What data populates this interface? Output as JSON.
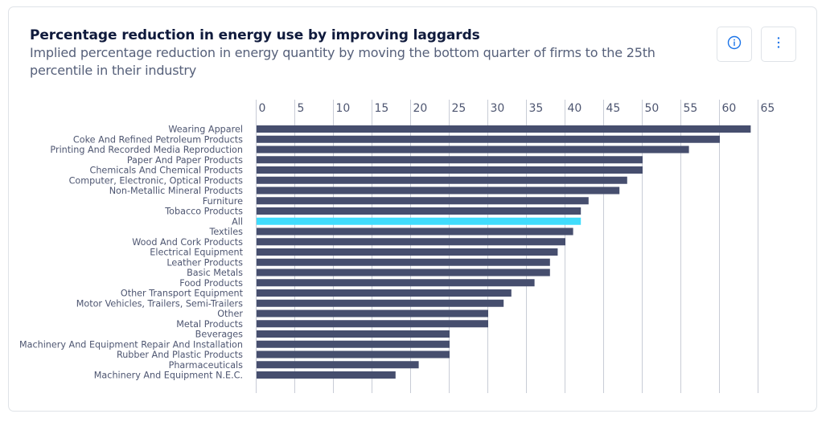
{
  "header": {
    "title": "Percentage reduction in energy use by improving laggards",
    "subtitle": "Implied percentage reduction in energy quantity by moving the bottom quarter of firms to the 25th percentile in their industry",
    "info_button_icon": "info-circle-icon",
    "more_button_icon": "vertical-ellipsis-icon"
  },
  "colors": {
    "bar": "#464e6e",
    "highlight_bar": "#40dcfc",
    "gridline": "#c8ccd6",
    "accent": "#1a73e8"
  },
  "chart_data": {
    "type": "bar",
    "orientation": "horizontal",
    "title": "Percentage reduction in energy use by improving laggards",
    "subtitle": "Implied percentage reduction in energy quantity by moving the bottom quarter of firms to the 25th percentile in their industry",
    "xlabel": "",
    "ylabel": "",
    "xlim": [
      0,
      65
    ],
    "xticks": [
      0,
      5,
      10,
      15,
      20,
      25,
      30,
      35,
      40,
      45,
      50,
      55,
      60,
      65
    ],
    "xaxis_position": "top",
    "grid": true,
    "highlight_category": "All",
    "categories": [
      "Wearing Apparel",
      "Coke And Refined Petroleum Products",
      "Printing And Recorded Media Reproduction",
      "Paper And Paper Products",
      "Chemicals And Chemical Products",
      "Computer, Electronic, Optical Products",
      "Non-Metallic Mineral Products",
      "Furniture",
      "Tobacco Products",
      "All",
      "Textiles",
      "Wood And Cork Products",
      "Electrical Equipment",
      "Leather Products",
      "Basic Metals",
      "Food Products",
      "Other Transport Equipment",
      "Motor Vehicles, Trailers, Semi-Trailers",
      "Other",
      "Metal Products",
      "Beverages",
      "Machinery And Equipment Repair And Installation",
      "Rubber And Plastic Products",
      "Pharmaceuticals",
      "Machinery And Equipment N.E.C."
    ],
    "values": [
      64,
      60,
      56,
      50,
      50,
      48,
      47,
      43,
      42,
      42,
      41,
      40,
      39,
      38,
      38,
      36,
      33,
      32,
      30,
      30,
      25,
      25,
      25,
      21,
      18
    ]
  }
}
